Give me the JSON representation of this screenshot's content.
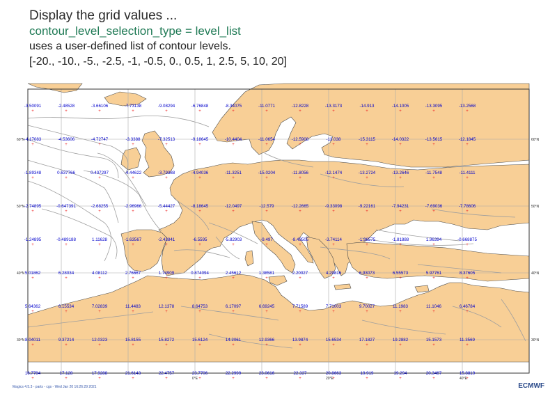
{
  "title": {
    "line1": "Display the grid values ...",
    "line2": "contour_level_selection_type = level_list",
    "line3": "uses a user-defined list of contour levels.",
    "line4": "[-20., -10., -5., -2.5, -1, -0.5, 0., 0.5, 1, 2.5, 5, 10, 20]"
  },
  "colors": {
    "land": "#f8cf96",
    "sea": "#ffffff",
    "coast": "#4a4a4a",
    "grid": "#a8a8a8",
    "contour": "#9e9e9e",
    "value_text": "#0000cc",
    "marker": "#ee2222",
    "axis_label": "#222222"
  },
  "map": {
    "projection": "cylindrical",
    "lon_range": [
      -25,
      50
    ],
    "lat_range": [
      25,
      67.5
    ],
    "lat_labels": [
      "60°N",
      "50°N",
      "40°N",
      "30°N"
    ],
    "lon_labels": [
      "0°E",
      "20°E",
      "40°E"
    ],
    "grid_rows": [
      [
        "-3.50091",
        "-2.48528",
        "-3.66106",
        "-7.73138",
        "-9.08294",
        "-6.76848",
        "-8.34075",
        "-11.0771",
        "-12.8228",
        "-13.3173",
        "-14.913",
        "-14.1005",
        "-13.3095",
        "-13.2568"
      ],
      [
        "-4.17083",
        "-4.53606",
        "-4.72747",
        "-3.3388",
        "-7.32513",
        "-9.18645",
        "-10.4404",
        "-11.0654",
        "-12.5908",
        "-13.038",
        "-15.3115",
        "-14.0322",
        "-13.5615",
        "-12.1845"
      ],
      [
        "-1.89348",
        "0.637766",
        "0.407297",
        "-4.44622",
        "-3.79388",
        "-4.94036",
        "-11.3251",
        "-15.0204",
        "-11.8056",
        "-12.1474",
        "-13.2724",
        "-13.2646",
        "-11.7548",
        "-11.4111"
      ],
      [
        "-2.74895",
        "-0.647391",
        "-2.68255",
        "-2.96966",
        "-5.44427",
        "-8.18645",
        "-12.0497",
        "-12.579",
        "-12.2665",
        "-9.33098",
        "-9.22161",
        "-7.94231",
        "-7.69036",
        "-7.78606"
      ],
      [
        "-1.24895",
        "-0.489188",
        "1.11628",
        "-1.63567",
        "-2.43841",
        "-6.5595",
        "-5.82903",
        "-9.497",
        "-8.49505",
        "-3.74114",
        "-1.96575",
        "-1.81888",
        "1.96394",
        "-0.668875"
      ],
      [
        "5.01862",
        "6.28034",
        "4.08112",
        "2.76667",
        "1.74909",
        "0.874094",
        "2.45612",
        "1.38581",
        "2.20027",
        "4.29816",
        "6.93073",
        "6.55573",
        "5.97761",
        "8.37605"
      ],
      [
        "5.64362",
        "6.15534",
        "7.02839",
        "11.4483",
        "12.1378",
        "8.64753",
        "6.17097",
        "6.69245",
        "7.71589",
        "7.71003",
        "9.70027",
        "11.1983",
        "11.1046",
        "6.46784"
      ],
      [
        "8.04011",
        "9.37214",
        "12.0323",
        "15.8155",
        "15.8272",
        "15.6124",
        "14.2061",
        "12.9366",
        "13.9874",
        "15.6534",
        "17.1827",
        "19.2882",
        "15.1573",
        "11.3569"
      ],
      [
        "16.7784",
        "17.128",
        "17.9288",
        "21.6143",
        "22.4757",
        "23.7706",
        "22.2999",
        "23.0616",
        "22.337",
        "20.8663",
        "19.919",
        "19.294",
        "20.3467",
        "15.8819"
      ]
    ]
  },
  "footer": {
    "left": "Magics 4.5.3 - parts - cgs - Wed Jan 20 16:26:29 2021",
    "right": "ECMWF"
  }
}
